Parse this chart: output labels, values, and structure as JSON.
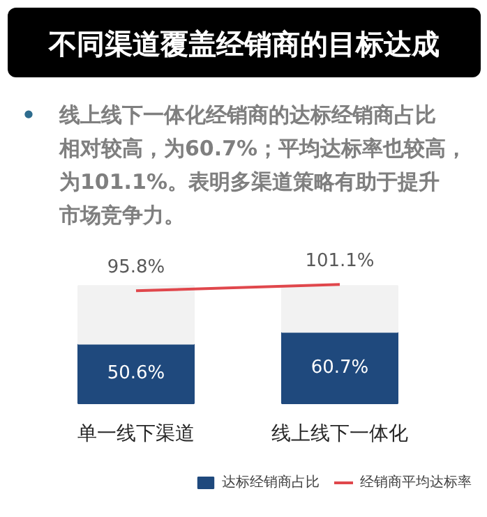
{
  "chart_data": {
    "type": "bar",
    "title": "不同渠道覆盖经销商的目标达成",
    "annotations": [
      "•",
      "线上线下一体化经销商的达标经销商占比相对较高，为60.7%；平均达标率也较高，为101.1%。表明多渠道策略有助于提升市场竞争力。"
    ],
    "categories": [
      "单一线下渠道",
      "线上线下一体化"
    ],
    "stacked": true,
    "legend": "bottom",
    "series": [
      {
        "name": "达标经销商占比",
        "color": "#1f497d",
        "values": [
          50.6,
          60.7
        ],
        "value_labels": [
          "50.6%",
          "60.7%"
        ]
      },
      {
        "color": "#f2f2f2",
        "values": [
          49.4,
          39.3
        ]
      },
      {
        "name": "经销商平均达标率",
        "type": "line",
        "color": "#e0474c",
        "values": [
          95.8,
          101.1
        ],
        "value_labels": [
          "95.8%",
          "101.1%"
        ]
      }
    ]
  }
}
